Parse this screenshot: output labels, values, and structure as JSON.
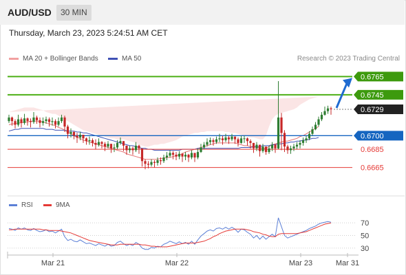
{
  "header": {
    "symbol": "AUD/USD",
    "timeframe": "30 MIN"
  },
  "timestamp": "Thursday, March 23, 2023 5:24:51 AM CET",
  "legend": {
    "ma20_bb": "MA 20 + Bollinger Bands",
    "ma50": "MA 50"
  },
  "credit": "Research © 2023 Trading Central",
  "rsi_legend": {
    "rsi": "RSI",
    "ma9": "9MA"
  },
  "colors": {
    "bull": "#2e7d32",
    "bear": "#c62828",
    "target": "#4caf14",
    "target_label": "#3d9a0e",
    "pivot": "#1565c0",
    "support": "#e53935",
    "last": "#222222",
    "bollinger_fill": "#f9d3d3",
    "ma20": "#e57373",
    "ma50": "#3f51b5",
    "rsi": "#5b7fd6",
    "rsi_ma": "#e53935",
    "arrow": "#1f6bd1"
  },
  "chart_data": [
    {
      "type": "candlestick",
      "title": "AUD/USD 30 MIN",
      "ylim": [
        0.6645,
        0.6785
      ],
      "x_tick_labels": [
        "Mar 21",
        "Mar 22",
        "Mar 23",
        "Mar 31"
      ],
      "levels": [
        {
          "value": 0.6765,
          "label": "0.6765",
          "kind": "target"
        },
        {
          "value": 0.6745,
          "label": "0.6745",
          "kind": "target"
        },
        {
          "value": 0.6729,
          "label": "0.6729",
          "kind": "last"
        },
        {
          "value": 0.67,
          "label": "0.6700",
          "kind": "pivot"
        },
        {
          "value": 0.6685,
          "label": "0.6685",
          "kind": "support"
        },
        {
          "value": 0.6665,
          "label": "0.6665",
          "kind": "support"
        }
      ],
      "projected_move": {
        "from": 0.6729,
        "to": 0.6765
      },
      "price_close": [
        0.672,
        0.6716,
        0.6712,
        0.6718,
        0.6714,
        0.6719,
        0.6716,
        0.6715,
        0.672,
        0.6717,
        0.6714,
        0.6716,
        0.6718,
        0.6715,
        0.6716,
        0.6712,
        0.6716,
        0.672,
        0.671,
        0.6702,
        0.6704,
        0.67,
        0.6698,
        0.6701,
        0.6697,
        0.6694,
        0.6695,
        0.6692,
        0.669,
        0.6693,
        0.6691,
        0.6688,
        0.6691,
        0.6686,
        0.6687,
        0.6692,
        0.6694,
        0.6689,
        0.6684,
        0.6686,
        0.6684,
        0.6689,
        0.6686,
        0.6672,
        0.6669,
        0.6668,
        0.6671,
        0.667,
        0.6673,
        0.6672,
        0.6676,
        0.6678,
        0.6681,
        0.6679,
        0.6677,
        0.668,
        0.6677,
        0.6679,
        0.6676,
        0.6681,
        0.6676,
        0.6682,
        0.6687,
        0.669,
        0.6693,
        0.6695,
        0.6693,
        0.6696,
        0.6697,
        0.6695,
        0.6698,
        0.6696,
        0.6699,
        0.6696,
        0.6692,
        0.6697,
        0.6697,
        0.6694,
        0.6692,
        0.6686,
        0.669,
        0.6683,
        0.6688,
        0.6682,
        0.6686,
        0.669,
        0.6686,
        0.672,
        0.6703,
        0.6688,
        0.6684,
        0.6686,
        0.6688,
        0.669,
        0.6692,
        0.6695,
        0.6697,
        0.6702,
        0.6707,
        0.6712,
        0.6718,
        0.6723,
        0.6727,
        0.673,
        0.6729
      ],
      "price_high": [
        0.6723,
        0.6721,
        0.6718,
        0.6723,
        0.672,
        0.6724,
        0.672,
        0.6719,
        0.6726,
        0.6722,
        0.672,
        0.672,
        0.6721,
        0.672,
        0.672,
        0.6718,
        0.672,
        0.6723,
        0.6722,
        0.6712,
        0.6708,
        0.6705,
        0.6703,
        0.6704,
        0.6701,
        0.6698,
        0.6699,
        0.6697,
        0.6696,
        0.6697,
        0.6694,
        0.6693,
        0.6694,
        0.6691,
        0.6691,
        0.6695,
        0.6698,
        0.6694,
        0.6689,
        0.6689,
        0.6688,
        0.6693,
        0.669,
        0.6682,
        0.6674,
        0.6672,
        0.6674,
        0.6673,
        0.6676,
        0.6676,
        0.6679,
        0.6682,
        0.6684,
        0.6683,
        0.6682,
        0.6683,
        0.6681,
        0.6682,
        0.668,
        0.6684,
        0.6681,
        0.6686,
        0.6691,
        0.6693,
        0.6697,
        0.6698,
        0.6697,
        0.6699,
        0.6702,
        0.67,
        0.6702,
        0.67,
        0.6702,
        0.6699,
        0.6698,
        0.67,
        0.67,
        0.6698,
        0.6696,
        0.6692,
        0.6693,
        0.6688,
        0.6691,
        0.6687,
        0.6689,
        0.6693,
        0.6691,
        0.676,
        0.6725,
        0.6706,
        0.669,
        0.6689,
        0.6691,
        0.6693,
        0.6695,
        0.6698,
        0.67,
        0.6705,
        0.671,
        0.6715,
        0.6721,
        0.6726,
        0.6732,
        0.6733,
        0.6732
      ],
      "price_low": [
        0.6714,
        0.6711,
        0.6708,
        0.671,
        0.6709,
        0.6712,
        0.6711,
        0.6709,
        0.6713,
        0.6713,
        0.6709,
        0.6711,
        0.6713,
        0.671,
        0.6711,
        0.6708,
        0.671,
        0.6714,
        0.6704,
        0.6697,
        0.6698,
        0.6696,
        0.6692,
        0.6695,
        0.6692,
        0.669,
        0.669,
        0.6688,
        0.6685,
        0.6688,
        0.6686,
        0.6683,
        0.6686,
        0.6681,
        0.6682,
        0.6685,
        0.669,
        0.6683,
        0.6679,
        0.6681,
        0.6679,
        0.6682,
        0.668,
        0.6666,
        0.6663,
        0.6664,
        0.6666,
        0.6665,
        0.6667,
        0.6668,
        0.667,
        0.6673,
        0.6676,
        0.6674,
        0.6673,
        0.6674,
        0.6671,
        0.6673,
        0.6671,
        0.6674,
        0.6671,
        0.6674,
        0.6681,
        0.6685,
        0.6688,
        0.669,
        0.6689,
        0.6691,
        0.6693,
        0.669,
        0.6693,
        0.6691,
        0.6694,
        0.6691,
        0.6688,
        0.6691,
        0.6692,
        0.6689,
        0.6686,
        0.6681,
        0.6683,
        0.6677,
        0.6681,
        0.6679,
        0.668,
        0.6683,
        0.6681,
        0.6685,
        0.6684,
        0.6682,
        0.668,
        0.668,
        0.6683,
        0.6685,
        0.6686,
        0.6689,
        0.6692,
        0.6695,
        0.67,
        0.6706,
        0.671,
        0.6716,
        0.6722,
        0.6724,
        0.6723
      ],
      "price_open": [
        0.6716,
        0.672,
        0.6716,
        0.6712,
        0.6718,
        0.6714,
        0.6719,
        0.6716,
        0.6715,
        0.672,
        0.6717,
        0.6714,
        0.6716,
        0.6718,
        0.6715,
        0.6716,
        0.6712,
        0.6716,
        0.672,
        0.671,
        0.6702,
        0.6704,
        0.67,
        0.6698,
        0.6701,
        0.6697,
        0.6694,
        0.6695,
        0.6692,
        0.669,
        0.6693,
        0.6691,
        0.6688,
        0.6691,
        0.6686,
        0.6687,
        0.6692,
        0.6694,
        0.6689,
        0.6684,
        0.6686,
        0.6684,
        0.6689,
        0.6686,
        0.6672,
        0.6669,
        0.6668,
        0.6671,
        0.667,
        0.6673,
        0.6672,
        0.6676,
        0.6678,
        0.6681,
        0.6679,
        0.6677,
        0.668,
        0.6677,
        0.6679,
        0.6676,
        0.6681,
        0.6676,
        0.6682,
        0.6687,
        0.669,
        0.6693,
        0.6695,
        0.6693,
        0.6696,
        0.6697,
        0.6695,
        0.6698,
        0.6696,
        0.6699,
        0.6696,
        0.6692,
        0.6697,
        0.6697,
        0.6694,
        0.6692,
        0.6686,
        0.669,
        0.6683,
        0.6688,
        0.6682,
        0.6686,
        0.669,
        0.6686,
        0.672,
        0.6703,
        0.6688,
        0.6684,
        0.6686,
        0.6688,
        0.669,
        0.6692,
        0.6695,
        0.6697,
        0.6702,
        0.6707,
        0.6712,
        0.6718,
        0.6723,
        0.6727,
        0.673
      ],
      "ma20": [
        0.6712,
        0.6713,
        0.6713,
        0.6714,
        0.6714,
        0.6715,
        0.6715,
        0.6716,
        0.6716,
        0.6716,
        0.6716,
        0.6715,
        0.6714,
        0.6713,
        0.6712,
        0.6711,
        0.6709,
        0.6708,
        0.6706,
        0.6704,
        0.6702,
        0.67,
        0.6698,
        0.6697,
        0.6695,
        0.6694,
        0.6693,
        0.6692,
        0.6691,
        0.669,
        0.6689,
        0.6688,
        0.6687,
        0.6686,
        0.6685,
        0.6684,
        0.6683,
        0.6682,
        0.668,
        0.6679,
        0.6678,
        0.6677,
        0.6676,
        0.6675,
        0.6674,
        0.6674,
        0.6674,
        0.6674,
        0.6674,
        0.6675,
        0.6675,
        0.6676,
        0.6676,
        0.6677,
        0.6678,
        0.6679,
        0.668,
        0.6682,
        0.6683,
        0.6684,
        0.6685,
        0.6686,
        0.6687,
        0.6688,
        0.6689,
        0.669,
        0.6691,
        0.6692,
        0.6692,
        0.6692,
        0.6692,
        0.6692,
        0.6692,
        0.6692,
        0.6691,
        0.669,
        0.6689,
        0.6689,
        0.6688,
        0.6688,
        0.6687,
        0.6687,
        0.6686,
        0.6686,
        0.6688,
        0.669,
        0.6691,
        0.6692,
        0.6693,
        0.6694,
        0.6694,
        0.6695,
        0.6696,
        0.6697,
        0.6699,
        0.67,
        0.6702,
        0.6704,
        0.6706,
        0.6708,
        0.671
      ],
      "ma50": [
        0.6705,
        0.6706,
        0.6707,
        0.6707,
        0.6708,
        0.6708,
        0.6708,
        0.6708,
        0.6708,
        0.6708,
        0.6708,
        0.6708,
        0.6707,
        0.6707,
        0.6707,
        0.6706,
        0.6706,
        0.6706,
        0.6706,
        0.6705,
        0.6705,
        0.6705,
        0.6704,
        0.6704,
        0.6703,
        0.6703,
        0.6702,
        0.6701,
        0.67,
        0.6699,
        0.6698,
        0.6697,
        0.6696,
        0.6695,
        0.6694,
        0.6693,
        0.6692,
        0.6691,
        0.669,
        0.6689,
        0.6689,
        0.6688,
        0.6687,
        0.6686,
        0.6686,
        0.6685,
        0.6685,
        0.6684,
        0.6684,
        0.6684,
        0.6684,
        0.6684,
        0.6684,
        0.6684,
        0.6684,
        0.6684,
        0.6685,
        0.6685,
        0.6685,
        0.6685,
        0.6685,
        0.6686,
        0.6686,
        0.6686,
        0.6686,
        0.6686,
        0.6686,
        0.6686,
        0.6686,
        0.6686,
        0.6686,
        0.6686,
        0.6686,
        0.6686,
        0.6686,
        0.6687,
        0.6687,
        0.6687,
        0.6687,
        0.6688,
        0.6688,
        0.6688,
        0.6689,
        0.6689,
        0.6689,
        0.669,
        0.669,
        0.6691,
        0.6691,
        0.6692,
        0.6692,
        0.6693,
        0.6693,
        0.6694,
        0.6694,
        0.6695,
        0.6695,
        0.6696,
        0.6697,
        0.6697,
        0.6698
      ],
      "bb_upper": [
        0.6726,
        0.6727,
        0.6728,
        0.6729,
        0.673,
        0.6731,
        0.6731,
        0.6731,
        0.6731,
        0.673,
        0.6729,
        0.6728,
        0.6726,
        0.6725,
        0.6724,
        0.6724,
        0.6722,
        0.672,
        0.6718,
        0.6716,
        0.6714,
        0.6712,
        0.671,
        0.6708,
        0.6706,
        0.6705,
        0.6704,
        0.6703,
        0.6702,
        0.6701,
        0.67,
        0.6699,
        0.6698,
        0.6697,
        0.6697,
        0.6696,
        0.6696,
        0.6696,
        0.6695,
        0.6694,
        0.6693,
        0.6692,
        0.669,
        0.6689,
        0.6688,
        0.6688,
        0.6689,
        0.669,
        0.669,
        0.6691,
        0.6691,
        0.6692,
        0.6693,
        0.6694,
        0.6695,
        0.6697,
        0.6699,
        0.67,
        0.6701,
        0.6702,
        0.6703,
        0.6703,
        0.6704,
        0.6704,
        0.6705,
        0.6705,
        0.6705,
        0.6705,
        0.6705,
        0.6705,
        0.6704,
        0.6704,
        0.6703,
        0.6703,
        0.6702,
        0.6701,
        0.67,
        0.6699,
        0.6698,
        0.6698,
        0.6697,
        0.6696,
        0.6696,
        0.67,
        0.671,
        0.6718,
        0.6722,
        0.6724,
        0.6725,
        0.6726,
        0.6727,
        0.6728,
        0.6729,
        0.6731,
        0.6734,
        0.6736,
        0.6738,
        0.674,
        0.6741,
        0.6742,
        0.6743
      ],
      "bb_lower": [
        0.6698,
        0.6699,
        0.6698,
        0.6699,
        0.6698,
        0.6699,
        0.6699,
        0.6701,
        0.6701,
        0.6702,
        0.6703,
        0.6702,
        0.6702,
        0.6701,
        0.67,
        0.6698,
        0.6696,
        0.6696,
        0.6694,
        0.6692,
        0.669,
        0.6688,
        0.6686,
        0.6686,
        0.6684,
        0.6683,
        0.6682,
        0.6681,
        0.668,
        0.6679,
        0.6678,
        0.6677,
        0.6676,
        0.6675,
        0.6673,
        0.6672,
        0.667,
        0.6668,
        0.6665,
        0.6664,
        0.6663,
        0.6662,
        0.6662,
        0.6661,
        0.666,
        0.666,
        0.6659,
        0.6658,
        0.6658,
        0.6659,
        0.6659,
        0.666,
        0.6659,
        0.666,
        0.6661,
        0.6661,
        0.6661,
        0.6664,
        0.6665,
        0.6666,
        0.6667,
        0.6669,
        0.667,
        0.6672,
        0.6673,
        0.6675,
        0.6677,
        0.6679,
        0.6679,
        0.6679,
        0.668,
        0.668,
        0.6681,
        0.6681,
        0.668,
        0.6679,
        0.6678,
        0.6679,
        0.6678,
        0.6678,
        0.6677,
        0.6678,
        0.6676,
        0.6672,
        0.6666,
        0.6662,
        0.666,
        0.666,
        0.6661,
        0.6662,
        0.6661,
        0.6662,
        0.6663,
        0.6663,
        0.6664,
        0.6664,
        0.6666,
        0.6668,
        0.6671,
        0.6674,
        0.6677
      ]
    },
    {
      "type": "line",
      "title": "RSI",
      "ylim": [
        20,
        80
      ],
      "y_ticks": [
        70,
        50,
        30
      ],
      "series": [
        {
          "name": "RSI",
          "values": [
            61,
            60,
            58,
            62,
            60,
            62,
            59,
            58,
            61,
            58,
            56,
            57,
            59,
            56,
            57,
            54,
            57,
            60,
            48,
            42,
            44,
            41,
            40,
            43,
            40,
            37,
            38,
            36,
            34,
            37,
            35,
            33,
            36,
            33,
            34,
            39,
            41,
            37,
            34,
            36,
            34,
            39,
            36,
            30,
            28,
            28,
            31,
            30,
            33,
            32,
            36,
            38,
            41,
            39,
            37,
            40,
            37,
            39,
            36,
            41,
            36,
            43,
            49,
            53,
            57,
            59,
            57,
            61,
            62,
            60,
            63,
            60,
            63,
            60,
            55,
            60,
            59,
            55,
            52,
            46,
            50,
            44,
            49,
            44,
            48,
            52,
            48,
            78,
            64,
            50,
            46,
            48,
            50,
            52,
            54,
            56,
            58,
            61,
            63,
            65,
            68,
            70,
            71,
            72,
            71
          ]
        },
        {
          "name": "9MA",
          "values": [
            59,
            59,
            60,
            60,
            60,
            60,
            60,
            60,
            60,
            60,
            60,
            59,
            59,
            58,
            58,
            58,
            58,
            57,
            56,
            55,
            54,
            52,
            50,
            48,
            46,
            44,
            42,
            41,
            40,
            39,
            38,
            37,
            36,
            35,
            35,
            35,
            36,
            36,
            36,
            36,
            36,
            36,
            36,
            35,
            35,
            34,
            33,
            33,
            32,
            32,
            32,
            32,
            33,
            34,
            35,
            36,
            37,
            38,
            38,
            38,
            38,
            39,
            40,
            41,
            43,
            45,
            48,
            50,
            53,
            55,
            57,
            58,
            59,
            60,
            60,
            60,
            60,
            59,
            58,
            56,
            55,
            54,
            52,
            51,
            49,
            48,
            48,
            52,
            53,
            53,
            53,
            53,
            53,
            53,
            54,
            55,
            56,
            58,
            60,
            62,
            64,
            66,
            68,
            69,
            70
          ]
        }
      ]
    }
  ]
}
